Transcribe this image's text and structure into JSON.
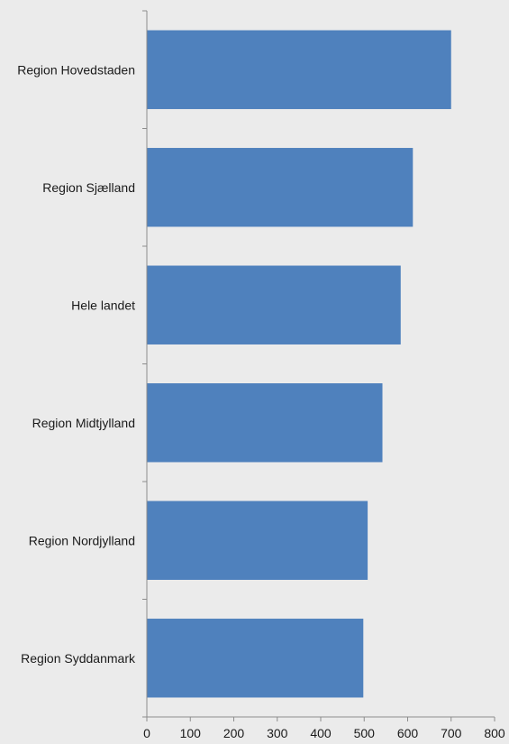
{
  "chart_data": {
    "type": "bar",
    "orientation": "horizontal",
    "categories": [
      "Region Hovedstaden",
      "Region Sjælland",
      "Hele landet",
      "Region Midtjylland",
      "Region Nordjylland",
      "Region Syddanmark"
    ],
    "values": [
      700,
      612,
      584,
      542,
      508,
      498
    ],
    "title": "",
    "xlabel": "",
    "ylabel": "",
    "xlim": [
      0,
      800
    ],
    "xticks": [
      "0",
      "100",
      "200",
      "300",
      "400",
      "500",
      "600",
      "700",
      "800"
    ],
    "grid": false,
    "legend": "none",
    "colors": {
      "bar": "#4f81bd",
      "background": "#ebebeb",
      "axis": "#8c8c8c"
    }
  }
}
